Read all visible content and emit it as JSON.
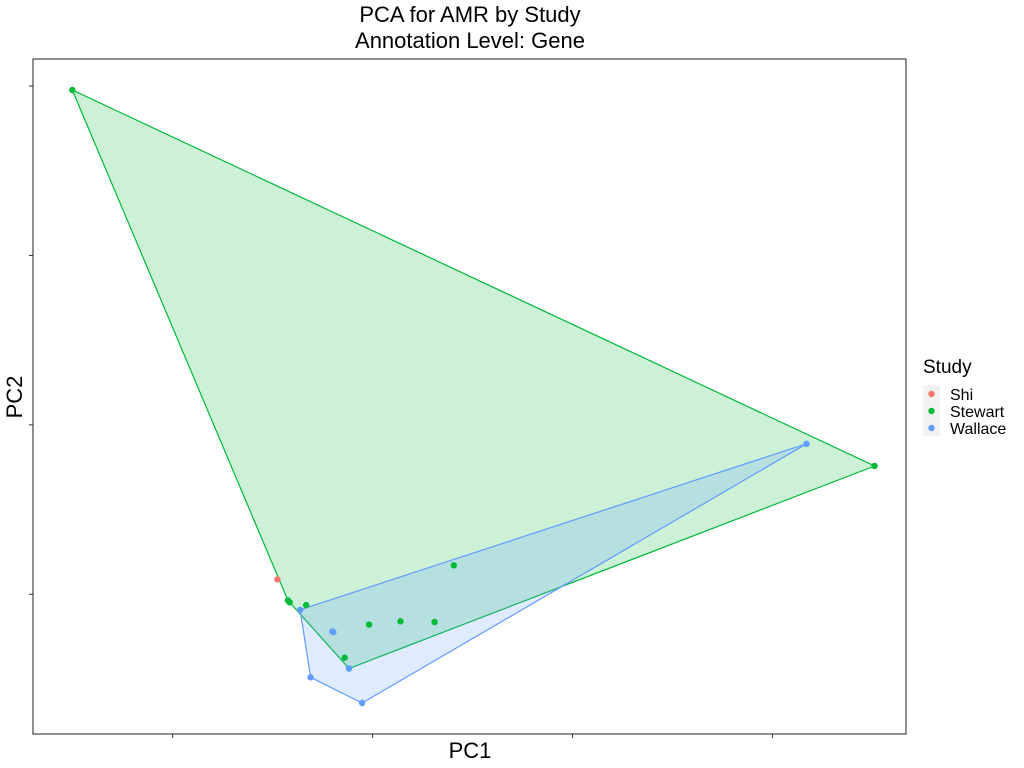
{
  "chart_data": {
    "type": "scatter",
    "title": "PCA for AMR by Study",
    "subtitle": "Annotation Level: Gene",
    "xlabel": "PC1",
    "ylabel": "PC2",
    "xlim": [
      0,
      100
    ],
    "ylim": [
      0,
      100
    ],
    "x_tick_count": 4,
    "y_tick_count": 4,
    "tick_labels_shown": false,
    "grid": false,
    "hulls": true,
    "legend": {
      "title": "Study",
      "position": "right"
    },
    "series": [
      {
        "name": "Shi",
        "color": "#F8766D",
        "points": [
          [
            28.0,
            22.9
          ]
        ]
      },
      {
        "name": "Stewart",
        "color": "#00BA38",
        "points": [
          [
            4.5,
            95.4
          ],
          [
            96.4,
            39.7
          ],
          [
            48.2,
            25.0
          ],
          [
            29.2,
            19.8
          ],
          [
            29.4,
            19.5
          ],
          [
            31.3,
            19.1
          ],
          [
            38.5,
            16.2
          ],
          [
            42.1,
            16.7
          ],
          [
            46.0,
            16.6
          ],
          [
            35.7,
            11.3
          ],
          [
            36.2,
            9.7
          ]
        ]
      },
      {
        "name": "Wallace",
        "color": "#619CFF",
        "points": [
          [
            88.6,
            43.0
          ],
          [
            30.6,
            18.4
          ],
          [
            34.3,
            15.2
          ],
          [
            34.4,
            15.1
          ],
          [
            36.2,
            9.7
          ],
          [
            31.8,
            8.4
          ],
          [
            37.7,
            4.6
          ]
        ]
      }
    ]
  }
}
